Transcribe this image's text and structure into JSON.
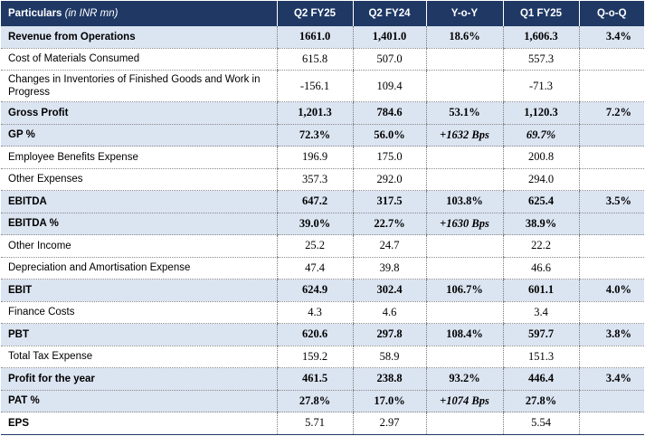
{
  "header": {
    "particulars": "Particulars",
    "unit": "(in INR mn)",
    "col_q2fy25": "Q2 FY25",
    "col_q2fy24": "Q2 FY24",
    "col_yoy": "Y-o-Y",
    "col_q1fy25": "Q1 FY25",
    "col_qoq": "Q-o-Q"
  },
  "rows": [
    {
      "label": "Revenue from Operations",
      "q2fy25": "1661.0",
      "q2fy24": "1,401.0",
      "yoy": "18.6%",
      "q1fy25": "1,606.3",
      "qoq": "3.4%"
    },
    {
      "label": "Cost of Materials Consumed",
      "q2fy25": "615.8",
      "q2fy24": "507.0",
      "yoy": "",
      "q1fy25": "557.3",
      "qoq": ""
    },
    {
      "label": "Changes in Inventories of Finished Goods and Work in Progress",
      "q2fy25": "-156.1",
      "q2fy24": "109.4",
      "yoy": "",
      "q1fy25": "-71.3",
      "qoq": ""
    },
    {
      "label": "Gross Profit",
      "q2fy25": "1,201.3",
      "q2fy24": "784.6",
      "yoy": "53.1%",
      "q1fy25": "1,120.3",
      "qoq": "7.2%"
    },
    {
      "label": "GP %",
      "q2fy25": "72.3%",
      "q2fy24": "56.0%",
      "yoy": "+1632 Bps",
      "q1fy25": "69.7%",
      "qoq": ""
    },
    {
      "label": "Employee Benefits Expense",
      "q2fy25": "196.9",
      "q2fy24": "175.0",
      "yoy": "",
      "q1fy25": "200.8",
      "qoq": ""
    },
    {
      "label": "Other Expenses",
      "q2fy25": "357.3",
      "q2fy24": "292.0",
      "yoy": "",
      "q1fy25": "294.0",
      "qoq": ""
    },
    {
      "label": "EBITDA",
      "q2fy25": "647.2",
      "q2fy24": "317.5",
      "yoy": "103.8%",
      "q1fy25": "625.4",
      "qoq": "3.5%"
    },
    {
      "label": "EBITDA %",
      "q2fy25": "39.0%",
      "q2fy24": "22.7%",
      "yoy": "+1630 Bps",
      "q1fy25": "38.9%",
      "qoq": ""
    },
    {
      "label": "Other Income",
      "q2fy25": "25.2",
      "q2fy24": "24.7",
      "yoy": "",
      "q1fy25": "22.2",
      "qoq": ""
    },
    {
      "label": "Depreciation and Amortisation Expense",
      "q2fy25": "47.4",
      "q2fy24": "39.8",
      "yoy": "",
      "q1fy25": "46.6",
      "qoq": ""
    },
    {
      "label": "EBIT",
      "q2fy25": "624.9",
      "q2fy24": "302.4",
      "yoy": "106.7%",
      "q1fy25": "601.1",
      "qoq": "4.0%"
    },
    {
      "label": "Finance Costs",
      "q2fy25": "4.3",
      "q2fy24": "4.6",
      "yoy": "",
      "q1fy25": "3.4",
      "qoq": ""
    },
    {
      "label": "PBT",
      "q2fy25": "620.6",
      "q2fy24": "297.8",
      "yoy": "108.4%",
      "q1fy25": "597.7",
      "qoq": "3.8%"
    },
    {
      "label": "Total Tax Expense",
      "q2fy25": "159.2",
      "q2fy24": "58.9",
      "yoy": "",
      "q1fy25": "151.3",
      "qoq": ""
    },
    {
      "label": "Profit for the year",
      "q2fy25": "461.5",
      "q2fy24": "238.8",
      "yoy": "93.2%",
      "q1fy25": "446.4",
      "qoq": "3.4%"
    },
    {
      "label": "PAT %",
      "q2fy25": "27.8%",
      "q2fy24": "17.0%",
      "yoy": "+1074 Bps",
      "q1fy25": "27.8%",
      "qoq": ""
    },
    {
      "label": "EPS",
      "q2fy25": "5.71",
      "q2fy24": "2.97",
      "yoy": "",
      "q1fy25": "5.54",
      "qoq": ""
    }
  ],
  "colors": {
    "header_bg": "#1f3864",
    "highlight_row_bg": "#dbe4f1",
    "header_text": "#ffffff"
  }
}
